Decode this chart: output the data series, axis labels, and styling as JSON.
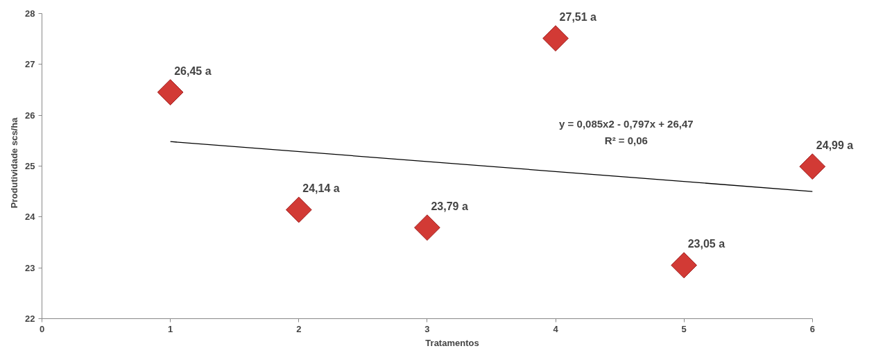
{
  "chart_data": {
    "type": "scatter",
    "xlabel": "Tratamentos",
    "ylabel": "Produtividade scs/ha",
    "x": [
      1,
      2,
      3,
      4,
      5,
      6
    ],
    "series": [
      {
        "color": "#d23a35",
        "marker": "diamond",
        "values": [
          26.45,
          24.14,
          23.79,
          27.51,
          23.05,
          24.99
        ],
        "value_labels": [
          "26,45 a",
          "24,14 a",
          "23,79 a",
          "27,51 a",
          "23,05 a",
          "24,99 a"
        ]
      },
      {
        "type": "line",
        "color": "#000000",
        "x": [
          1,
          6
        ],
        "values": [
          25.48,
          24.5
        ]
      }
    ],
    "annotations": [
      "y = 0,085x2 - 0,797x + 26,47",
      "R² = 0,06"
    ],
    "xlim": [
      0,
      6
    ],
    "xticks": [
      0,
      1,
      2,
      3,
      4,
      5,
      6
    ],
    "ylim": [
      22,
      28
    ],
    "yticks": [
      22,
      23,
      24,
      25,
      26,
      27,
      28
    ],
    "grid": false
  }
}
